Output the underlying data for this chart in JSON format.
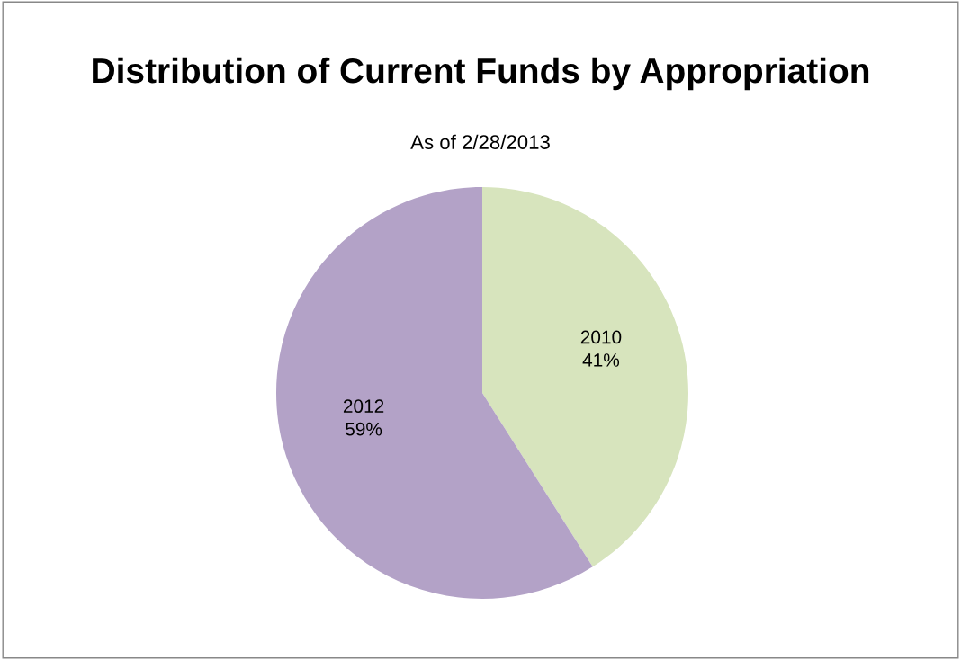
{
  "chart_data": {
    "type": "pie",
    "title": "Distribution of Current Funds by Appropriation",
    "subtitle": "As of 2/28/2013",
    "categories": [
      "2010",
      "2012"
    ],
    "values": [
      41,
      59
    ],
    "colors": [
      "#d7e4bd",
      "#b3a2c7"
    ],
    "value_labels": [
      "41%",
      "59%"
    ],
    "legend": false
  }
}
